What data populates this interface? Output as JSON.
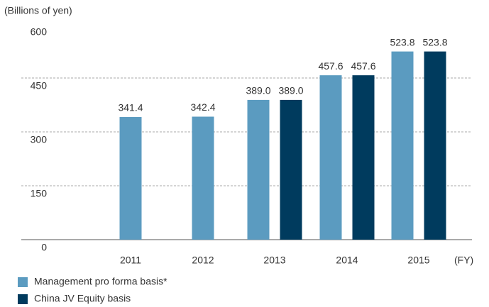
{
  "chart_data": {
    "type": "bar",
    "y_axis_label": "(Billions of yen)",
    "x_axis_label": "(FY)",
    "categories": [
      "2011",
      "2012",
      "2013",
      "2014",
      "2015"
    ],
    "series": [
      {
        "name": "Management pro forma basis*",
        "color": "#5b9bc0",
        "values": [
          341.4,
          342.4,
          389.0,
          457.6,
          523.8
        ],
        "value_labels": [
          "341.4",
          "342.4",
          "389.0",
          "457.6",
          "523.8"
        ]
      },
      {
        "name": "China JV Equity basis",
        "color": "#003b5e",
        "values": [
          null,
          null,
          389.0,
          457.6,
          523.8
        ],
        "value_labels": [
          null,
          null,
          "389.0",
          "457.6",
          "523.8"
        ]
      }
    ],
    "ylim": [
      0,
      600
    ],
    "yticks": [
      0,
      150,
      300,
      450,
      600
    ],
    "grid": true
  }
}
